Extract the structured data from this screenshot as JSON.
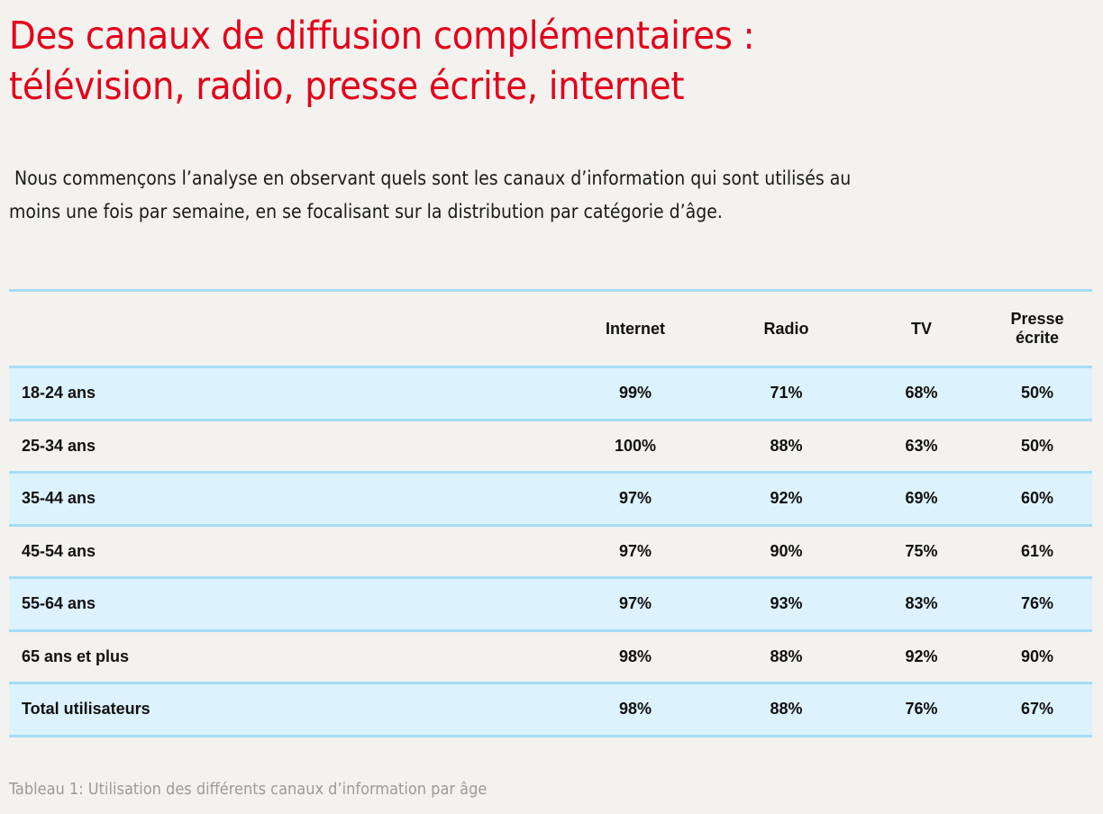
{
  "page": {
    "title_line1": "Des canaux de diffusion complémentaires :",
    "title_line2": "télévision, radio, presse écrite, internet",
    "intro_line1": " Nous commençons l’analyse en observant quels sont les canaux d’information qui sont utilisés au",
    "intro_line2": "moins une fois par semaine, en se focalisant sur la distribution par catégorie d’âge.",
    "caption": "Tableau 1: Utilisation des différents canaux d’information par âge",
    "colors": {
      "title": "#e3001b",
      "row_shade": "#dcf2fd",
      "rule": "#a6dcf6",
      "caption": "#9b9b9b"
    }
  },
  "table": {
    "headers": [
      "",
      "Internet",
      "Radio",
      "TV",
      "Presse\nécrite"
    ],
    "header_presse_line1": "Presse",
    "header_presse_line2": "écrite",
    "rows": [
      {
        "label": "18-24 ans",
        "internet": "99%",
        "radio": "71%",
        "tv": "68%",
        "presse": "50%"
      },
      {
        "label": "25-34 ans",
        "internet": "100%",
        "radio": "88%",
        "tv": "63%",
        "presse": "50%"
      },
      {
        "label": "35-44 ans",
        "internet": "97%",
        "radio": "92%",
        "tv": "69%",
        "presse": "60%"
      },
      {
        "label": "45-54 ans",
        "internet": "97%",
        "radio": "90%",
        "tv": "75%",
        "presse": "61%"
      },
      {
        "label": "55-64 ans",
        "internet": "97%",
        "radio": "93%",
        "tv": "83%",
        "presse": "76%"
      },
      {
        "label": "65 ans et plus",
        "internet": "98%",
        "radio": "88%",
        "tv": "92%",
        "presse": "90%"
      },
      {
        "label": "Total utilisateurs",
        "internet": "98%",
        "radio": "88%",
        "tv": "76%",
        "presse": "67%"
      }
    ]
  }
}
